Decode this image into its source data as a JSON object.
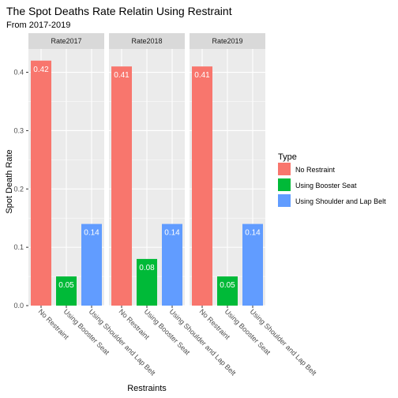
{
  "chart_data": {
    "type": "bar",
    "title": "The Spot Deaths Rate Relatin Using Restraint",
    "subtitle": "From 2017-2019",
    "xlabel": "Restraints",
    "ylabel": "Spot Death Rate",
    "ylim": [
      0,
      0.44
    ],
    "yticks": [
      "0.0",
      "0.1",
      "0.2",
      "0.3",
      "0.4"
    ],
    "categories": [
      "No Restraint",
      "Using Booster Seat",
      "Using Shoulder and Lap Belt"
    ],
    "facets": [
      {
        "name": "Rate2017",
        "values": [
          0.42,
          0.05,
          0.14
        ],
        "labels": [
          "0.42",
          "0.05",
          "0.14"
        ]
      },
      {
        "name": "Rate2018",
        "values": [
          0.41,
          0.08,
          0.14
        ],
        "labels": [
          "0.41",
          "0.08",
          "0.14"
        ]
      },
      {
        "name": "Rate2019",
        "values": [
          0.41,
          0.05,
          0.14
        ],
        "labels": [
          "0.41",
          "0.05",
          "0.14"
        ]
      }
    ],
    "legend": {
      "title": "Type",
      "position": "right",
      "entries": [
        "No Restraint",
        "Using Booster Seat",
        "Using Shoulder and Lap Belt"
      ]
    },
    "colors": [
      "#F8766D",
      "#00BA38",
      "#619CFF"
    ],
    "panel_background": "#EBEBEB",
    "strip_background": "#D9D9D9",
    "grid": true
  }
}
